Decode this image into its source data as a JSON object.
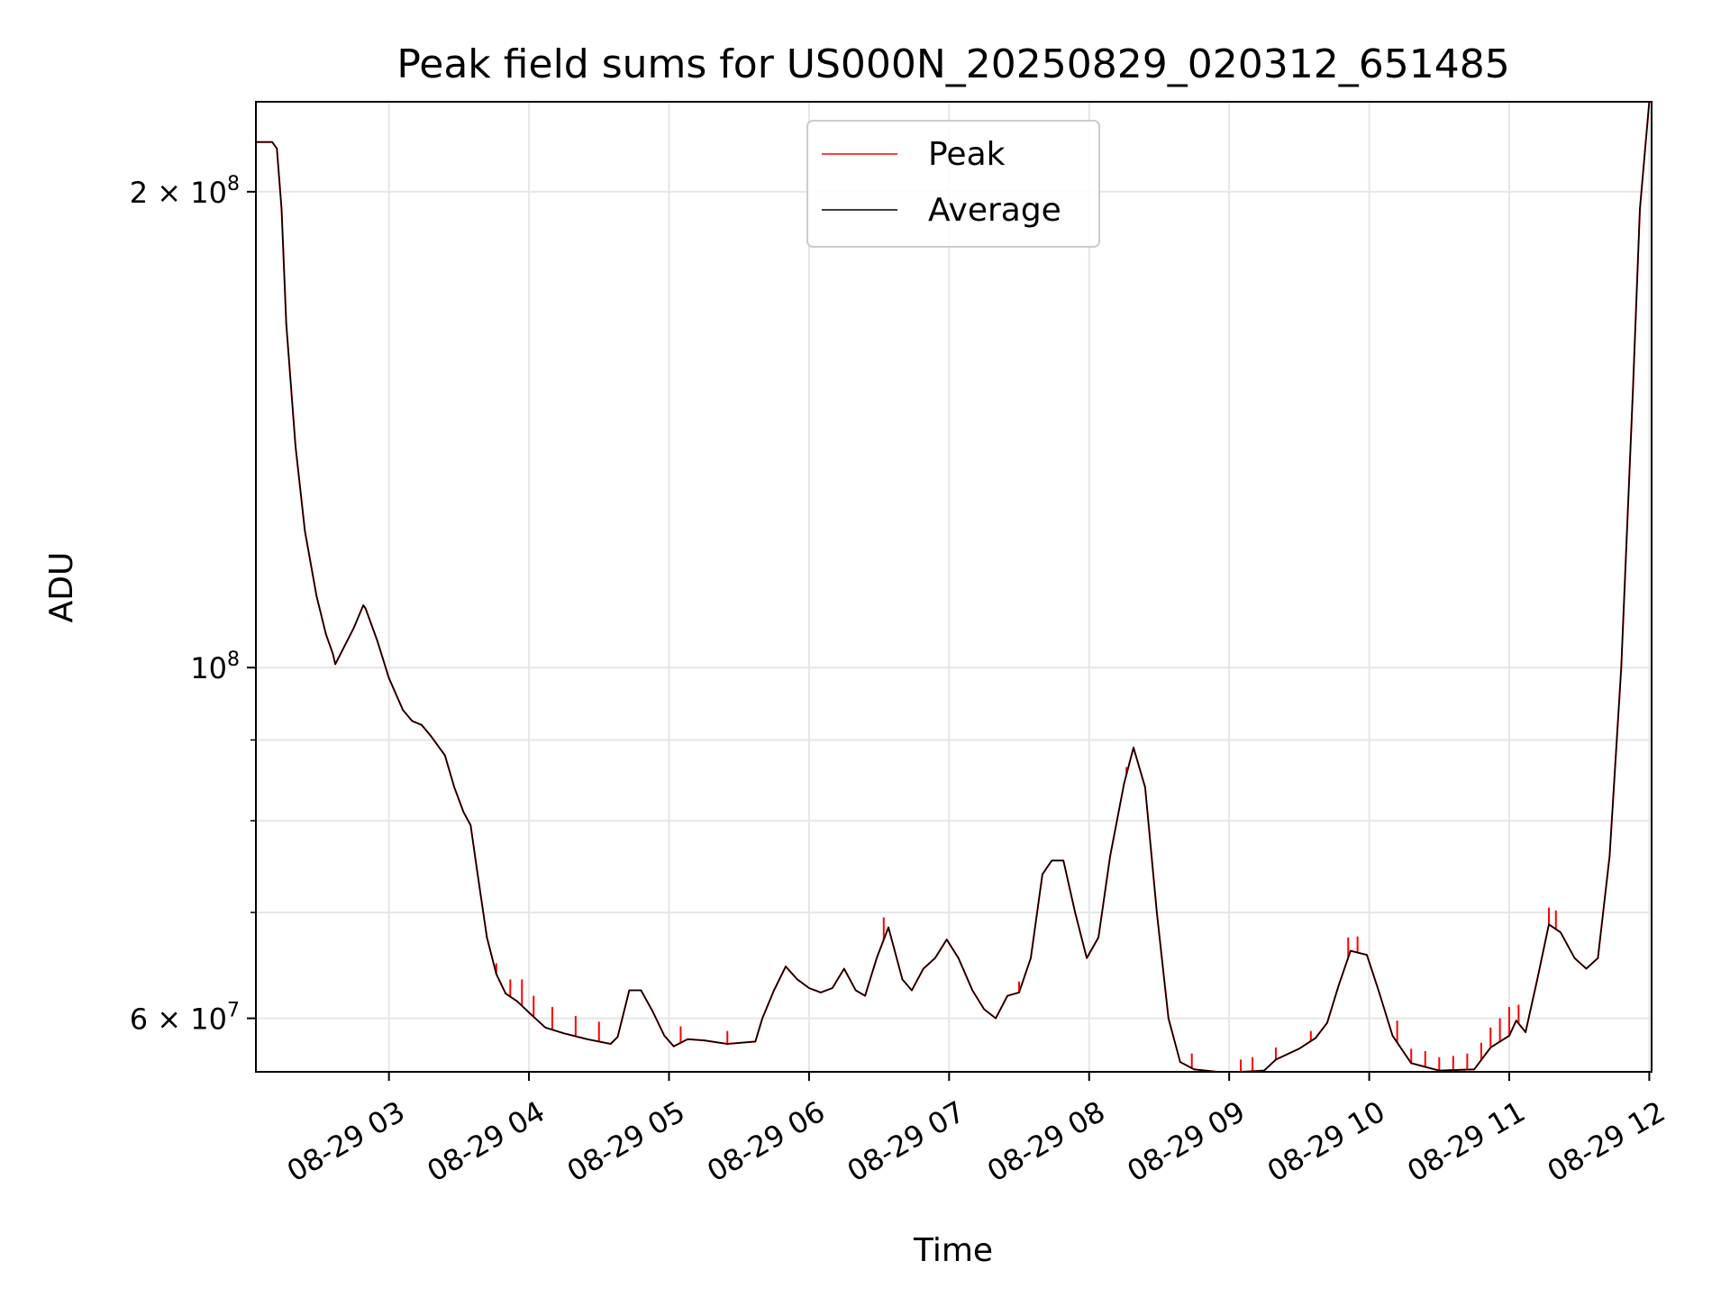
{
  "chart_data": {
    "type": "line",
    "title": "Peak field sums for US000N_20250829_020312_651485",
    "xlabel": "Time",
    "ylabel": "ADU",
    "xscale": "time",
    "yscale": "log",
    "xlim": [
      "2025-08-29 02:03",
      "2025-08-29 12:01"
    ],
    "ylim": [
      55500000,
      228000000
    ],
    "grid": true,
    "legend": {
      "position": "top-center",
      "entries": [
        "Peak",
        "Average"
      ]
    },
    "x_ticks": [
      {
        "value": "2025-08-29 03:00",
        "label": "08-29 03"
      },
      {
        "value": "2025-08-29 04:00",
        "label": "08-29 04"
      },
      {
        "value": "2025-08-29 05:00",
        "label": "08-29 05"
      },
      {
        "value": "2025-08-29 06:00",
        "label": "08-29 06"
      },
      {
        "value": "2025-08-29 07:00",
        "label": "08-29 07"
      },
      {
        "value": "2025-08-29 08:00",
        "label": "08-29 08"
      },
      {
        "value": "2025-08-29 09:00",
        "label": "08-29 09"
      },
      {
        "value": "2025-08-29 10:00",
        "label": "08-29 10"
      },
      {
        "value": "2025-08-29 11:00",
        "label": "08-29 11"
      },
      {
        "value": "2025-08-29 12:00",
        "label": "08-29 12"
      }
    ],
    "y_ticks": [
      {
        "value": 60000000,
        "base": "6 × 10",
        "exp": "7"
      },
      {
        "value": 100000000,
        "base": "10",
        "exp": "8"
      },
      {
        "value": 200000000,
        "base": "2 × 10",
        "exp": "8"
      }
    ],
    "y_minor_ticks": [
      70000000,
      80000000,
      90000000
    ],
    "series": [
      {
        "name": "Average",
        "color": "#000000",
        "points": [
          [
            "2025-08-29 02:03",
            215000000
          ],
          [
            "2025-08-29 02:10",
            215000000
          ],
          [
            "2025-08-29 02:12",
            213000000
          ],
          [
            "2025-08-29 02:14",
            195000000
          ],
          [
            "2025-08-29 02:16",
            165000000
          ],
          [
            "2025-08-29 02:20",
            138000000
          ],
          [
            "2025-08-29 02:24",
            122000000
          ],
          [
            "2025-08-29 02:29",
            111000000
          ],
          [
            "2025-08-29 02:33",
            105000000
          ],
          [
            "2025-08-29 02:36",
            102000000
          ],
          [
            "2025-08-29 02:37",
            100500000
          ],
          [
            "2025-08-29 02:40",
            102500000
          ],
          [
            "2025-08-29 02:45",
            106000000
          ],
          [
            "2025-08-29 02:49",
            109500000
          ],
          [
            "2025-08-29 02:50",
            109000000
          ],
          [
            "2025-08-29 02:55",
            104000000
          ],
          [
            "2025-08-29 03:00",
            98500000
          ],
          [
            "2025-08-29 03:06",
            94000000
          ],
          [
            "2025-08-29 03:10",
            92500000
          ],
          [
            "2025-08-29 03:14",
            92000000
          ],
          [
            "2025-08-29 03:18",
            90500000
          ],
          [
            "2025-08-29 03:24",
            88000000
          ],
          [
            "2025-08-29 03:28",
            84000000
          ],
          [
            "2025-08-29 03:32",
            81000000
          ],
          [
            "2025-08-29 03:35",
            79500000
          ],
          [
            "2025-08-29 03:38",
            74000000
          ],
          [
            "2025-08-29 03:42",
            67500000
          ],
          [
            "2025-08-29 03:46",
            64000000
          ],
          [
            "2025-08-29 03:50",
            62200000
          ],
          [
            "2025-08-29 03:55",
            61500000
          ],
          [
            "2025-08-29 04:00",
            60500000
          ],
          [
            "2025-08-29 04:07",
            59200000
          ],
          [
            "2025-08-29 04:15",
            58700000
          ],
          [
            "2025-08-29 04:25",
            58200000
          ],
          [
            "2025-08-29 04:35",
            57800000
          ],
          [
            "2025-08-29 04:38",
            58400000
          ],
          [
            "2025-08-29 04:43",
            62500000
          ],
          [
            "2025-08-29 04:48",
            62500000
          ],
          [
            "2025-08-29 04:53",
            60600000
          ],
          [
            "2025-08-29 04:58",
            58500000
          ],
          [
            "2025-08-29 05:02",
            57600000
          ],
          [
            "2025-08-29 05:08",
            58200000
          ],
          [
            "2025-08-29 05:15",
            58100000
          ],
          [
            "2025-08-29 05:25",
            57800000
          ],
          [
            "2025-08-29 05:37",
            58000000
          ],
          [
            "2025-08-29 05:40",
            60000000
          ],
          [
            "2025-08-29 05:45",
            62500000
          ],
          [
            "2025-08-29 05:50",
            64700000
          ],
          [
            "2025-08-29 05:55",
            63500000
          ],
          [
            "2025-08-29 06:00",
            62700000
          ],
          [
            "2025-08-29 06:05",
            62300000
          ],
          [
            "2025-08-29 06:10",
            62700000
          ],
          [
            "2025-08-29 06:15",
            64500000
          ],
          [
            "2025-08-29 06:20",
            62500000
          ],
          [
            "2025-08-29 06:24",
            62000000
          ],
          [
            "2025-08-29 06:29",
            65500000
          ],
          [
            "2025-08-29 06:34",
            68500000
          ],
          [
            "2025-08-29 06:40",
            63500000
          ],
          [
            "2025-08-29 06:44",
            62500000
          ],
          [
            "2025-08-29 06:49",
            64500000
          ],
          [
            "2025-08-29 06:54",
            65500000
          ],
          [
            "2025-08-29 06:59",
            67300000
          ],
          [
            "2025-08-29 07:04",
            65500000
          ],
          [
            "2025-08-29 07:10",
            62500000
          ],
          [
            "2025-08-29 07:15",
            60800000
          ],
          [
            "2025-08-29 07:20",
            60000000
          ],
          [
            "2025-08-29 07:25",
            62000000
          ],
          [
            "2025-08-29 07:30",
            62300000
          ],
          [
            "2025-08-29 07:35",
            65500000
          ],
          [
            "2025-08-29 07:40",
            74000000
          ],
          [
            "2025-08-29 07:44",
            75500000
          ],
          [
            "2025-08-29 07:49",
            75500000
          ],
          [
            "2025-08-29 07:54",
            70000000
          ],
          [
            "2025-08-29 07:59",
            65500000
          ],
          [
            "2025-08-29 08:04",
            67500000
          ],
          [
            "2025-08-29 08:09",
            76000000
          ],
          [
            "2025-08-29 08:15",
            84500000
          ],
          [
            "2025-08-29 08:19",
            89000000
          ],
          [
            "2025-08-29 08:24",
            84000000
          ],
          [
            "2025-08-29 08:29",
            70000000
          ],
          [
            "2025-08-29 08:34",
            60000000
          ],
          [
            "2025-08-29 08:39",
            56300000
          ],
          [
            "2025-08-29 08:45",
            55700000
          ],
          [
            "2025-08-29 08:55",
            55400000
          ],
          [
            "2025-08-29 09:05",
            55400000
          ],
          [
            "2025-08-29 09:15",
            55600000
          ],
          [
            "2025-08-29 09:20",
            56500000
          ],
          [
            "2025-08-29 09:30",
            57400000
          ],
          [
            "2025-08-29 09:37",
            58300000
          ],
          [
            "2025-08-29 09:42",
            59600000
          ],
          [
            "2025-08-29 09:47",
            63000000
          ],
          [
            "2025-08-29 09:52",
            66200000
          ],
          [
            "2025-08-29 09:59",
            65800000
          ],
          [
            "2025-08-29 10:04",
            62500000
          ],
          [
            "2025-08-29 10:10",
            58500000
          ],
          [
            "2025-08-29 10:18",
            56200000
          ],
          [
            "2025-08-29 10:30",
            55600000
          ],
          [
            "2025-08-29 10:45",
            55700000
          ],
          [
            "2025-08-29 10:52",
            57500000
          ],
          [
            "2025-08-29 11:00",
            58500000
          ],
          [
            "2025-08-29 11:03",
            59800000
          ],
          [
            "2025-08-29 11:07",
            58800000
          ],
          [
            "2025-08-29 11:12",
            63500000
          ],
          [
            "2025-08-29 11:17",
            68800000
          ],
          [
            "2025-08-29 11:22",
            68000000
          ],
          [
            "2025-08-29 11:28",
            65500000
          ],
          [
            "2025-08-29 11:33",
            64500000
          ],
          [
            "2025-08-29 11:38",
            65500000
          ],
          [
            "2025-08-29 11:43",
            76000000
          ],
          [
            "2025-08-29 11:48",
            100000000
          ],
          [
            "2025-08-29 11:53",
            150000000
          ],
          [
            "2025-08-29 11:56",
            195000000
          ],
          [
            "2025-08-29 12:00",
            228000000
          ]
        ]
      },
      {
        "name": "Peak",
        "color": "#ff0000",
        "spikes": [
          [
            "2025-08-29 03:46",
            65000000
          ],
          [
            "2025-08-29 03:52",
            63500000
          ],
          [
            "2025-08-29 03:57",
            63500000
          ],
          [
            "2025-08-29 04:02",
            62000000
          ],
          [
            "2025-08-29 04:10",
            61000000
          ],
          [
            "2025-08-29 04:20",
            60200000
          ],
          [
            "2025-08-29 04:30",
            59700000
          ],
          [
            "2025-08-29 05:05",
            59300000
          ],
          [
            "2025-08-29 05:25",
            58900000
          ],
          [
            "2025-08-29 06:32",
            69500000
          ],
          [
            "2025-08-29 07:30",
            63300000
          ],
          [
            "2025-08-29 08:16",
            86500000
          ],
          [
            "2025-08-29 08:44",
            57000000
          ],
          [
            "2025-08-29 09:05",
            56500000
          ],
          [
            "2025-08-29 09:10",
            56700000
          ],
          [
            "2025-08-29 09:20",
            57500000
          ],
          [
            "2025-08-29 09:35",
            58900000
          ],
          [
            "2025-08-29 09:48",
            63500000
          ],
          [
            "2025-08-29 09:51",
            67500000
          ],
          [
            "2025-08-29 09:55",
            67600000
          ],
          [
            "2025-08-29 10:12",
            59800000
          ],
          [
            "2025-08-29 10:18",
            57400000
          ],
          [
            "2025-08-29 10:24",
            57200000
          ],
          [
            "2025-08-29 10:30",
            56700000
          ],
          [
            "2025-08-29 10:36",
            56800000
          ],
          [
            "2025-08-29 10:42",
            57000000
          ],
          [
            "2025-08-29 10:48",
            57900000
          ],
          [
            "2025-08-29 10:52",
            59200000
          ],
          [
            "2025-08-29 10:56",
            60000000
          ],
          [
            "2025-08-29 11:00",
            61000000
          ],
          [
            "2025-08-29 11:04",
            61200000
          ],
          [
            "2025-08-29 11:17",
            70500000
          ],
          [
            "2025-08-29 11:20",
            70200000
          ]
        ]
      }
    ]
  }
}
